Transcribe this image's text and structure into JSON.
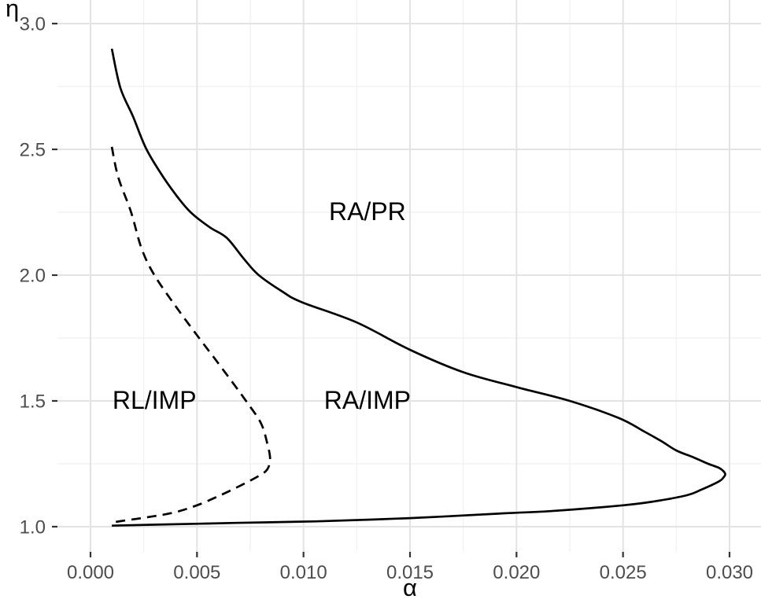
{
  "figure": {
    "background": "#ffffff",
    "grid_major_color": "#e3e3e3",
    "grid_minor_color": "#f1f1f1",
    "curve_color": "#000000",
    "tick_label_color": "#4d4d4d",
    "tick_mark_color": "#333333",
    "axis_title_color": "#000000",
    "region_label_color": "#000000"
  },
  "chart_data": {
    "type": "line",
    "title": "",
    "xlabel": "α",
    "ylabel": "η",
    "xlim": [
      0,
      0.03
    ],
    "ylim": [
      1.0,
      3.0
    ],
    "grid": "major+minor",
    "legend": "none",
    "x_ticks": [
      {
        "value": 0.0,
        "label": "0.000"
      },
      {
        "value": 0.005,
        "label": "0.005"
      },
      {
        "value": 0.01,
        "label": "0.010"
      },
      {
        "value": 0.015,
        "label": "0.015"
      },
      {
        "value": 0.02,
        "label": "0.020"
      },
      {
        "value": 0.025,
        "label": "0.025"
      },
      {
        "value": 0.03,
        "label": "0.030"
      }
    ],
    "y_ticks": [
      {
        "value": 1.0,
        "label": "1.0"
      },
      {
        "value": 1.5,
        "label": "1.5"
      },
      {
        "value": 2.0,
        "label": "2.0"
      },
      {
        "value": 2.5,
        "label": "2.5"
      },
      {
        "value": 3.0,
        "label": "3.0"
      }
    ],
    "series": [
      {
        "name": "solid-boundary",
        "style": "solid",
        "points": [
          [
            0.001,
            2.9
          ],
          [
            0.0014,
            2.745
          ],
          [
            0.002,
            2.63
          ],
          [
            0.0026,
            2.505
          ],
          [
            0.0033,
            2.405
          ],
          [
            0.004,
            2.32
          ],
          [
            0.0047,
            2.25
          ],
          [
            0.0056,
            2.19
          ],
          [
            0.0064,
            2.148
          ],
          [
            0.0072,
            2.065
          ],
          [
            0.0079,
            2.0
          ],
          [
            0.009,
            1.935
          ],
          [
            0.0099,
            1.893
          ],
          [
            0.0125,
            1.812
          ],
          [
            0.015,
            1.703
          ],
          [
            0.0175,
            1.614
          ],
          [
            0.02,
            1.555
          ],
          [
            0.0225,
            1.5
          ],
          [
            0.0248,
            1.432
          ],
          [
            0.026,
            1.378
          ],
          [
            0.0268,
            1.34
          ],
          [
            0.0275,
            1.303
          ],
          [
            0.0283,
            1.276
          ],
          [
            0.029,
            1.25
          ],
          [
            0.0295,
            1.234
          ],
          [
            0.0297,
            1.222
          ],
          [
            0.0298,
            1.208
          ],
          [
            0.0297,
            1.194
          ],
          [
            0.0295,
            1.18
          ],
          [
            0.0287,
            1.148
          ],
          [
            0.028,
            1.125
          ],
          [
            0.0265,
            1.101
          ],
          [
            0.025,
            1.085
          ],
          [
            0.0216,
            1.062
          ],
          [
            0.0194,
            1.053
          ],
          [
            0.015,
            1.034
          ],
          [
            0.0105,
            1.021
          ],
          [
            0.0068,
            1.015
          ],
          [
            0.0031,
            1.008
          ],
          [
            0.001,
            1.004
          ]
        ]
      },
      {
        "name": "dashed-boundary",
        "style": "dashed",
        "points": [
          [
            0.001,
            2.51
          ],
          [
            0.0013,
            2.39
          ],
          [
            0.0019,
            2.252
          ],
          [
            0.0024,
            2.105
          ],
          [
            0.003,
            2.0
          ],
          [
            0.004,
            1.876
          ],
          [
            0.0051,
            1.75
          ],
          [
            0.0062,
            1.627
          ],
          [
            0.0073,
            1.5
          ],
          [
            0.008,
            1.412
          ],
          [
            0.0083,
            1.33
          ],
          [
            0.00843,
            1.27
          ],
          [
            0.0083,
            1.228
          ],
          [
            0.0079,
            1.202
          ],
          [
            0.0071,
            1.166
          ],
          [
            0.0061,
            1.125
          ],
          [
            0.005,
            1.085
          ],
          [
            0.0039,
            1.056
          ],
          [
            0.0027,
            1.038
          ],
          [
            0.0014,
            1.022
          ],
          [
            0.001,
            1.016
          ]
        ]
      }
    ],
    "annotations": [
      {
        "text": "RA/PR",
        "x": 0.013,
        "y": 2.253
      },
      {
        "text": "RL/IMP",
        "x": 0.003,
        "y": 1.503
      },
      {
        "text": "RA/IMP",
        "x": 0.013,
        "y": 1.503
      }
    ]
  }
}
